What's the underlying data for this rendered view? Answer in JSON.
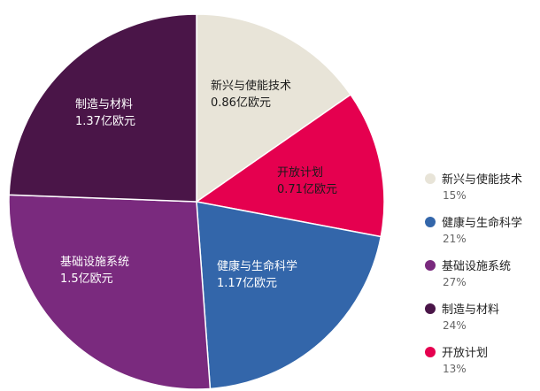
{
  "chart_data": {
    "type": "pie",
    "title": "",
    "unit": "亿欧元",
    "slices": [
      {
        "name": "新兴与使能技术",
        "value": 0.86,
        "value_label": "0.86亿欧元",
        "percent_label": "15%",
        "color": "#e8e4d8",
        "light_text": false
      },
      {
        "name": "开放计划",
        "value": 0.71,
        "value_label": "0.71亿欧元",
        "percent_label": "13%",
        "color": "#e5004f",
        "light_text": false
      },
      {
        "name": "健康与生命科学",
        "value": 1.17,
        "value_label": "1.17亿欧元",
        "percent_label": "21%",
        "color": "#3366aa",
        "light_text": true
      },
      {
        "name": "基础设施系统",
        "value": 1.5,
        "value_label": "1.5亿欧元",
        "percent_label": "27%",
        "color": "#7a2a7e",
        "light_text": true
      },
      {
        "name": "制造与材料",
        "value": 1.37,
        "value_label": "1.37亿欧元",
        "percent_label": "24%",
        "color": "#4a1548",
        "light_text": true
      }
    ],
    "legend_order": [
      "新兴与使能技术",
      "健康与生命科学",
      "基础设施系统",
      "制造与材料",
      "开放计划"
    ],
    "legend_position": "right",
    "start_angle": "12 o'clock",
    "direction": "clockwise",
    "grid": false
  }
}
